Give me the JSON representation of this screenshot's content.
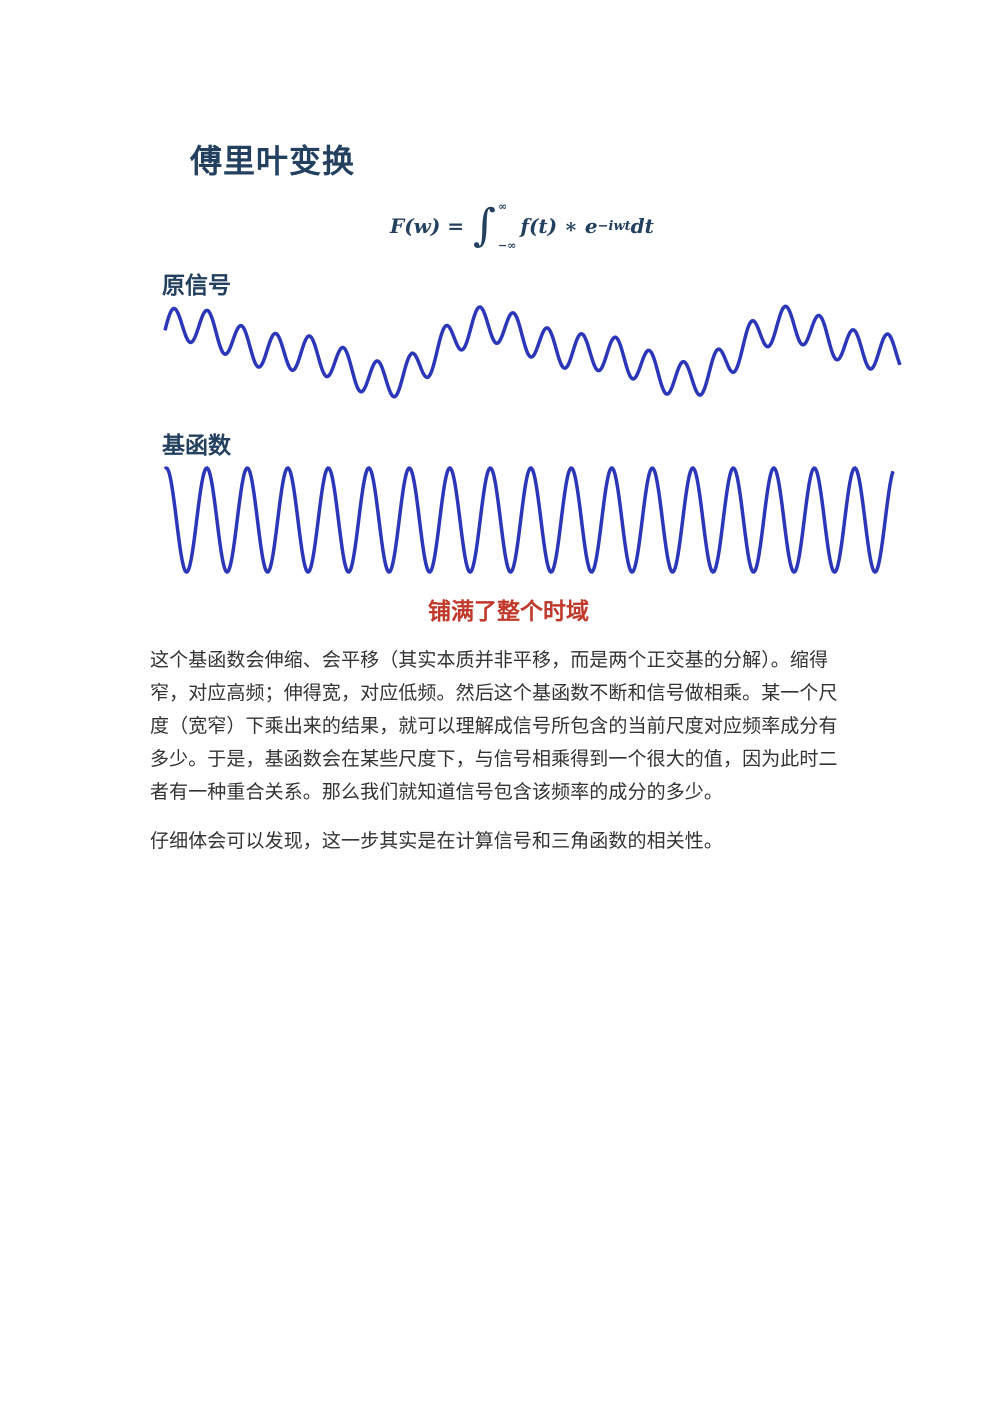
{
  "figure": {
    "title": "傅里叶变换",
    "formula": {
      "lhs": "F(w) = ",
      "upper": "∞",
      "lower": "−∞",
      "body": "f(t) ∗ e",
      "exponent": "−iwt",
      "tail": "dt"
    },
    "signal_label": "原信号",
    "basis_label": "基函数",
    "caption": "铺满了整个时域",
    "wave_color": "#2b36b8",
    "caption_color": "#c0392b"
  },
  "paragraphs": [
    "这个基函数会伸缩、会平移（其实本质并非平移，而是两个正交基的分解）。缩得窄，对应高频；伸得宽，对应低频。然后这个基函数不断和信号做相乘。某一个尺度（宽窄）下乘出来的结果，就可以理解成信号所包含的当前尺度对应频率成分有多少。于是，基函数会在某些尺度下，与信号相乘得到一个很大的值，因为此时二者有一种重合关系。那么我们就知道信号包含该频率的成分的多少。",
    "仔细体会可以发现，这一步其实是在计算信号和三角函数的相关性。"
  ]
}
